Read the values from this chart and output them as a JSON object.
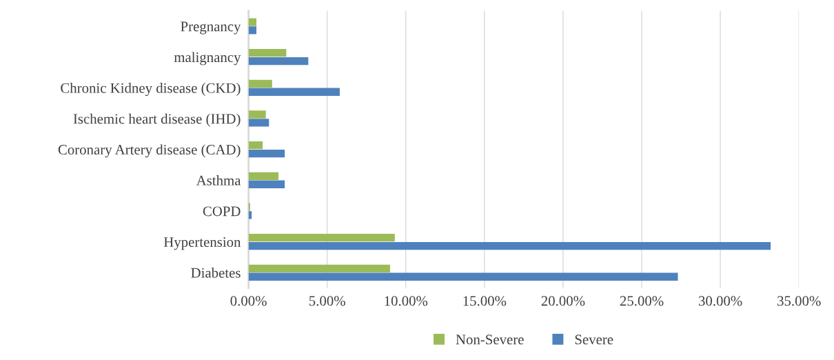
{
  "chart_data": {
    "type": "bar",
    "orientation": "horizontal",
    "categories": [
      "Pregnancy",
      "malignancy",
      "Chronic Kidney disease (CKD)",
      "Ischemic heart disease (IHD)",
      "Coronary Artery disease (CAD)",
      "Asthma",
      "COPD",
      "Hypertension",
      "Diabetes"
    ],
    "series": [
      {
        "name": "Non-Severe",
        "color": "#9bbb59",
        "values": [
          0.5,
          2.4,
          1.5,
          1.1,
          0.9,
          1.9,
          0.1,
          9.3,
          9.0
        ]
      },
      {
        "name": "Severe",
        "color": "#4f81bd",
        "values": [
          0.5,
          3.8,
          5.8,
          1.3,
          2.3,
          2.3,
          0.2,
          33.2,
          27.3
        ]
      }
    ],
    "xlim": [
      0,
      35
    ],
    "xticks": [
      {
        "value": 0,
        "label": "0.00%"
      },
      {
        "value": 5,
        "label": "5.00%"
      },
      {
        "value": 10,
        "label": "10.00%"
      },
      {
        "value": 15,
        "label": "15.00%"
      },
      {
        "value": 20,
        "label": "20.00%"
      },
      {
        "value": 25,
        "label": "25.00%"
      },
      {
        "value": 30,
        "label": "30.00%"
      },
      {
        "value": 35,
        "label": "35.00%"
      }
    ],
    "grid": "x",
    "legend": "bottom"
  }
}
